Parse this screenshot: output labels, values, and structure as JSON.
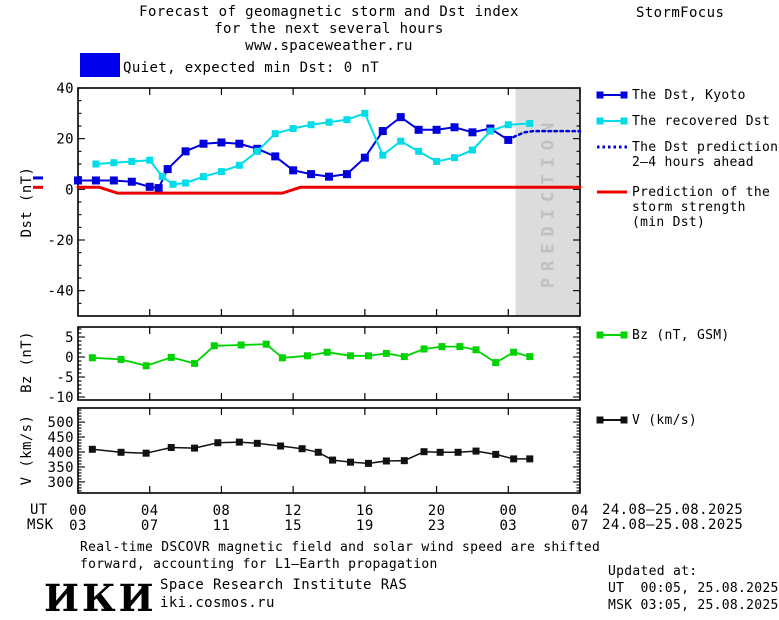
{
  "header": {
    "title1": "Forecast of geomagnetic storm and Dst index",
    "title2": "for the next several hours",
    "title3": "www.spaceweather.ru",
    "brand": "StormFocus"
  },
  "status": {
    "label": "Quiet, expected min Dst: 0 nT",
    "box_color": "#0000ee"
  },
  "prediction_band": {
    "label": "PREDICTION",
    "start_hour": 24.4,
    "band_color": "#dcdcdc",
    "text_color": "#c0c0c0"
  },
  "colors": {
    "dst_kyoto": "#0000dd",
    "recovered_dst": "#00dde8",
    "dst_prediction": "#0000dd",
    "storm_strength": "#ee0000",
    "bz": "#00d400",
    "v": "#111111",
    "frame": "#000000"
  },
  "chart_data": [
    {
      "type": "line",
      "panel": "dst",
      "ylabel": "Dst (nT)",
      "ylim": [
        -50,
        40
      ],
      "yticks": [
        40,
        20,
        0,
        -20,
        -40
      ],
      "ytick_labels": [
        "40",
        "20",
        "0",
        "-20",
        "-40"
      ],
      "ytick_minor_step": 5,
      "xlim_hours": [
        0,
        28
      ],
      "xticks_hours": [
        0,
        4,
        8,
        12,
        16,
        20,
        24,
        28
      ],
      "series": [
        {
          "name": "The Dst, Kyoto",
          "color": "#0000dd",
          "style": "solid",
          "width": 2,
          "marker": true,
          "marker_size": 8,
          "x": [
            0,
            1,
            2,
            3,
            4,
            4.5,
            5,
            6,
            7,
            8,
            9,
            10,
            11,
            12,
            13,
            14,
            15,
            16,
            17,
            18,
            19,
            20,
            21,
            22,
            23,
            24
          ],
          "y": [
            3.5,
            3.5,
            3.5,
            3,
            1,
            0.5,
            8,
            15,
            18,
            18.5,
            18,
            16,
            13,
            7.5,
            6,
            5,
            6,
            12.5,
            23,
            28.5,
            23.5,
            23.5,
            24.5,
            22.5,
            24,
            19.5
          ]
        },
        {
          "name": "The recovered Dst",
          "color": "#00dde8",
          "style": "solid",
          "width": 2,
          "marker": true,
          "marker_size": 7,
          "x": [
            1,
            2,
            3,
            4,
            4.7,
            5.3,
            6,
            7,
            8,
            9,
            10,
            11,
            12,
            13,
            14,
            15,
            16,
            17,
            18,
            19,
            20,
            21,
            22,
            23,
            24,
            25.2
          ],
          "y": [
            10,
            10.5,
            11,
            11.5,
            5,
            2,
            2.5,
            5,
            7,
            9.5,
            15,
            22,
            24,
            25.5,
            26.5,
            27.5,
            30,
            13.5,
            19,
            15,
            11,
            12.5,
            15.5,
            23,
            25.5,
            26
          ]
        },
        {
          "name": "The Dst prediction 2–4 hours ahead",
          "color": "#0000dd",
          "style": "dotted",
          "width": 2.5,
          "marker": false,
          "x": [
            24,
            24.4,
            24.9,
            25.4,
            28
          ],
          "y": [
            19.5,
            21,
            22.5,
            23,
            23
          ]
        },
        {
          "name": "Prediction of the storm strength (min Dst)",
          "color": "#ee0000",
          "style": "solid",
          "width": 3,
          "marker": false,
          "x": [
            0,
            1.2,
            2.2,
            11.4,
            12.4,
            28
          ],
          "y": [
            0.8,
            0.8,
            -1.5,
            -1.5,
            0.8,
            0.8
          ]
        }
      ],
      "axis_markers": [
        {
          "color": "#0000dd",
          "value": 4.5
        },
        {
          "color": "#ee0000",
          "value": 0.8
        }
      ]
    },
    {
      "type": "line",
      "panel": "bz",
      "ylabel": "Bz (nT)",
      "ylim": [
        -10.75,
        7.5
      ],
      "yticks": [
        5,
        0,
        -5,
        -10
      ],
      "ytick_labels": [
        "5",
        "0",
        "-5",
        "-10"
      ],
      "ytick_minor_step": 1,
      "xlim_hours": [
        0,
        28
      ],
      "xticks_hours": [
        0,
        4,
        8,
        12,
        16,
        20,
        24,
        28
      ],
      "series": [
        {
          "name": "Bz (nT, GSM)",
          "color": "#00d400",
          "style": "solid",
          "width": 1.8,
          "marker": true,
          "marker_size": 7,
          "x": [
            0.8,
            2.4,
            3.8,
            5.2,
            6.5,
            7.6,
            9.1,
            10.5,
            11.4,
            12.8,
            13.9,
            15.2,
            16.2,
            17.2,
            18.2,
            19.3,
            20.3,
            21.3,
            22.2,
            23.3,
            24.3,
            25.2
          ],
          "y": [
            -0.2,
            -0.6,
            -2.2,
            -0.1,
            -1.6,
            2.8,
            3.0,
            3.2,
            -0.2,
            0.3,
            1.2,
            0.3,
            0.3,
            0.9,
            0.1,
            2.0,
            2.6,
            2.6,
            1.8,
            -1.4,
            1.2,
            0.1
          ]
        }
      ]
    },
    {
      "type": "line",
      "panel": "v",
      "ylabel": "V (km/s)",
      "ylim": [
        263,
        547
      ],
      "yticks": [
        500,
        450,
        400,
        350,
        300
      ],
      "ytick_labels": [
        "500",
        "450",
        "400",
        "350",
        "300"
      ],
      "ytick_minor_step": 10,
      "xlim_hours": [
        0,
        28
      ],
      "xticks_hours": [
        0,
        4,
        8,
        12,
        16,
        20,
        24,
        28
      ],
      "series": [
        {
          "name": "V (km/s)",
          "color": "#111111",
          "style": "solid",
          "width": 1.5,
          "marker": true,
          "marker_size": 7,
          "x": [
            0.8,
            2.4,
            3.8,
            5.2,
            6.5,
            7.8,
            9.0,
            10.0,
            11.3,
            12.5,
            13.4,
            14.2,
            15.2,
            16.2,
            17.2,
            18.2,
            19.3,
            20.2,
            21.2,
            22.2,
            23.3,
            24.3,
            25.2
          ],
          "y": [
            409,
            399,
            396,
            415,
            413,
            431,
            433,
            429,
            420,
            411,
            399,
            373,
            366,
            362,
            370,
            371,
            401,
            399,
            399,
            403,
            392,
            377,
            377
          ]
        }
      ]
    }
  ],
  "xaxis": {
    "ut_label": "UT",
    "msk_label": "MSK",
    "ut_ticks": [
      "00",
      "04",
      "08",
      "12",
      "16",
      "20",
      "00",
      "04"
    ],
    "msk_ticks": [
      "03",
      "07",
      "11",
      "15",
      "19",
      "23",
      "03",
      "07"
    ],
    "ut_date": "24.08–25.08.2025",
    "msk_date": "24.08–25.08.2025"
  },
  "legends": {
    "dst_items": [
      {
        "swatch": {
          "style": "solid",
          "markers": true,
          "color": "#0000dd"
        },
        "lines": [
          "The Dst, Kyoto"
        ]
      },
      {
        "swatch": {
          "style": "solid",
          "markers": true,
          "color": "#00dde8"
        },
        "lines": [
          "The recovered Dst"
        ]
      },
      {
        "swatch": {
          "style": "dotted",
          "markers": false,
          "color": "#0000dd"
        },
        "lines": [
          "The Dst prediction",
          "2–4 hours ahead"
        ]
      },
      {
        "swatch": {
          "style": "solid",
          "markers": false,
          "color": "#ee0000"
        },
        "lines": [
          "Prediction of the",
          "storm strength",
          "(min Dst)"
        ]
      }
    ],
    "bz": {
      "swatch": {
        "style": "solid",
        "markers": true,
        "color": "#00d400"
      },
      "label": "Bz (nT, GSM)"
    },
    "v": {
      "swatch": {
        "style": "solid",
        "markers": true,
        "color": "#111111"
      },
      "label": "V (km/s)"
    }
  },
  "footer": {
    "note1": "Real-time DSCOVR magnetic field and solar wind speed are shifted",
    "note2": "forward, accounting for L1–Earth propagation",
    "logo": "ИКИ",
    "org": "Space Research Institute RAS",
    "site": "iki.cosmos.ru",
    "updated_label": "Updated at:",
    "updated_ut": "UT  00:05, 25.08.2025",
    "updated_msk": "MSK 03:05, 25.08.2025"
  }
}
